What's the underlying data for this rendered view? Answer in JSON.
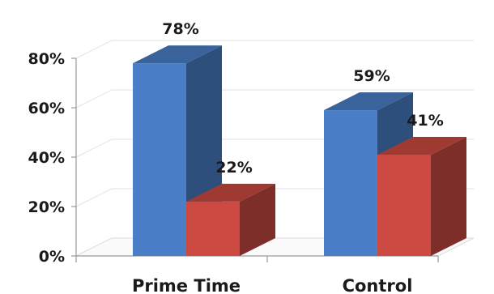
{
  "chart_data": {
    "type": "bar",
    "title": "",
    "xlabel": "",
    "ylabel": "",
    "categories": [
      "Prime Time",
      "Control"
    ],
    "series": [
      {
        "values": [
          78,
          59
        ],
        "labels": [
          "78%",
          "59%"
        ],
        "color": "#4a7fc8"
      },
      {
        "values": [
          22,
          41
        ],
        "labels": [
          "22%",
          "41%"
        ],
        "color": "#cc4a42"
      }
    ],
    "ylim": [
      0,
      80
    ],
    "yticks": [
      0,
      20,
      40,
      60,
      80
    ],
    "ytick_labels": [
      "0%",
      "20%",
      "40%",
      "60%",
      "80%"
    ],
    "grid": true,
    "legend": "none",
    "style": "3d-clustered-column"
  }
}
